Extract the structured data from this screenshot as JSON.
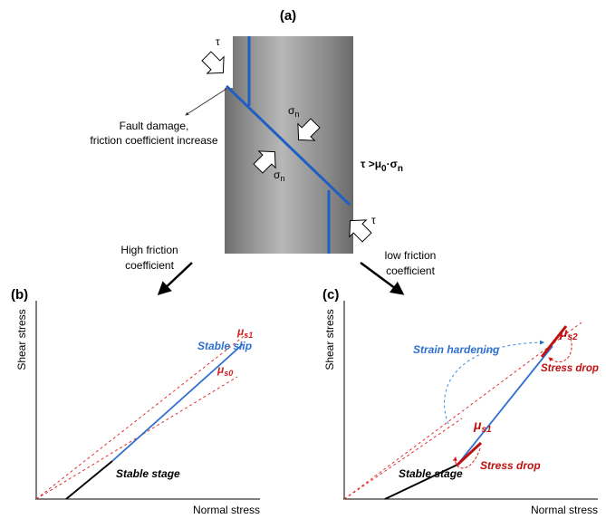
{
  "panel_a": {
    "label": "(a)",
    "tau_top": "τ",
    "tau_bottom": "τ",
    "sigma_upper": {
      "symbol": "σ",
      "sub": "n"
    },
    "sigma_lower": {
      "symbol": "σ",
      "sub": "n"
    },
    "fault_note": [
      "Fault damage,",
      "friction coefficient increase"
    ],
    "condition": [
      "τ >μ",
      "0",
      "·σ",
      "n"
    ]
  },
  "transitions": {
    "high": [
      "High friction",
      "coefficient"
    ],
    "low": [
      "low friction",
      "coefficient"
    ]
  },
  "panel_b": {
    "label": "(b)",
    "y_axis": "Shear stress",
    "x_axis": "Normal stress",
    "mu_s1": {
      "symbol": "μ",
      "sub": "s1"
    },
    "mu_s0": {
      "symbol": "μ",
      "sub": "s0"
    },
    "stable_slip": "Stable slip",
    "stable_stage": "Stable stage"
  },
  "panel_c": {
    "label": "(c)",
    "y_axis": "Shear stress",
    "x_axis": "Normal stress",
    "strain_hardening": "Strain hardening",
    "mu_s2": {
      "symbol": "μ",
      "sub": "s2"
    },
    "mu_s1": {
      "symbol": "μ",
      "sub": "s1"
    },
    "stress_drop_upper": "Stress drop",
    "stress_drop_lower": "Stress drop",
    "stable_stage": "Stable stage"
  }
}
